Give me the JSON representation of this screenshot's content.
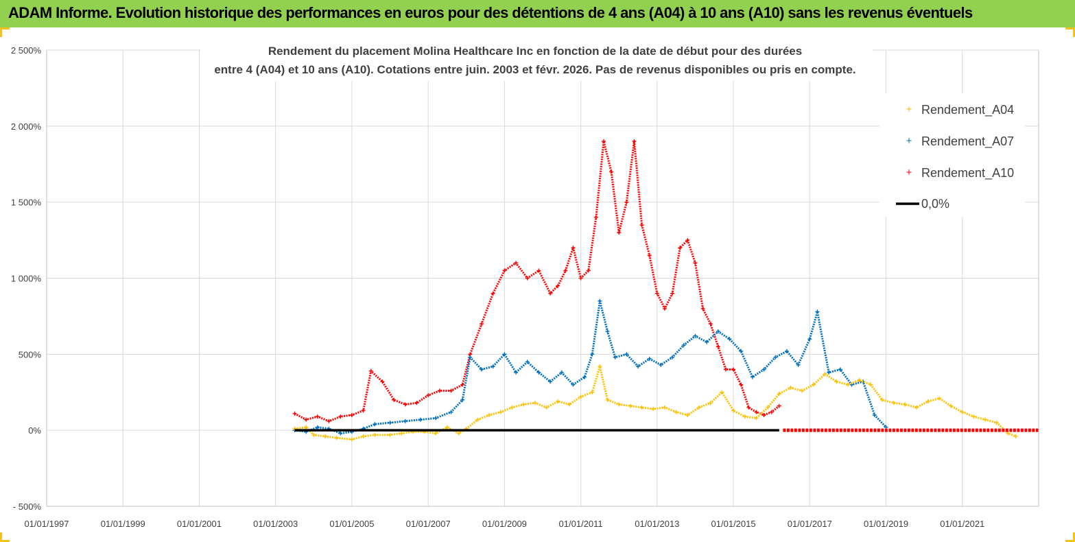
{
  "banner": {
    "title": "ADAM Informe. Evolution historique des performances en euros pour des détentions de 4 ans (A04) à 10 ans (A10) sans les revenus éventuels"
  },
  "colors": {
    "banner": "#92d050",
    "A04": "#ffc000",
    "A07": "#0070c0",
    "A10": "#ff0000",
    "zero": "#000000",
    "grid": "#d9d9d9"
  },
  "chart_data": {
    "type": "scatter",
    "title_line1": "Rendement du placement Molina Healthcare Inc en fonction de la date de début pour des durées",
    "title_line2": "entre 4 (A04) et 10 ans (A10). Cotations entre juin. 2003 et févr. 2026. Pas de revenus disponibles ou pris en compte.",
    "xlim": [
      1997.0,
      2023.0
    ],
    "ylim": [
      -500,
      2500
    ],
    "yticks": [
      {
        "v": 2500,
        "label": "2 500%"
      },
      {
        "v": 2000,
        "label": "2 000%"
      },
      {
        "v": 1500,
        "label": "1 500%"
      },
      {
        "v": 1000,
        "label": "1 000%"
      },
      {
        "v": 500,
        "label": "500%"
      },
      {
        "v": 0,
        "label": "0%"
      },
      {
        "v": -500,
        "label": "- 500%"
      }
    ],
    "xticks": [
      {
        "v": 1997,
        "label": "01/01/1997"
      },
      {
        "v": 1999,
        "label": "01/01/1999"
      },
      {
        "v": 2001,
        "label": "01/01/2001"
      },
      {
        "v": 2003,
        "label": "01/01/2003"
      },
      {
        "v": 2005,
        "label": "01/01/2005"
      },
      {
        "v": 2007,
        "label": "01/01/2007"
      },
      {
        "v": 2009,
        "label": "01/01/2009"
      },
      {
        "v": 2011,
        "label": "01/01/2011"
      },
      {
        "v": 2013,
        "label": "01/01/2013"
      },
      {
        "v": 2015,
        "label": "01/01/2015"
      },
      {
        "v": 2017,
        "label": "01/01/2017"
      },
      {
        "v": 2019,
        "label": "01/01/2019"
      },
      {
        "v": 2021,
        "label": "01/01/2021"
      }
    ],
    "series": [
      {
        "name": "Rendement_A04",
        "x": [
          2003.5,
          2003.8,
          2004.0,
          2004.3,
          2004.6,
          2005.0,
          2005.3,
          2005.6,
          2006.0,
          2006.3,
          2006.6,
          2006.9,
          2007.2,
          2007.5,
          2007.8,
          2008.0,
          2008.3,
          2008.6,
          2008.9,
          2009.2,
          2009.5,
          2009.8,
          2010.1,
          2010.4,
          2010.7,
          2011.0,
          2011.3,
          2011.5,
          2011.7,
          2012.0,
          2012.3,
          2012.6,
          2012.9,
          2013.2,
          2013.5,
          2013.8,
          2014.1,
          2014.4,
          2014.7,
          2015.0,
          2015.3,
          2015.6,
          2015.9,
          2016.2,
          2016.5,
          2016.8,
          2017.1,
          2017.4,
          2017.7,
          2018.0,
          2018.3,
          2018.6,
          2018.9,
          2019.2,
          2019.5,
          2019.8,
          2020.1,
          2020.4,
          2020.7,
          2021.0,
          2021.3,
          2021.6,
          2021.9,
          2022.2,
          2022.4
        ],
        "y": [
          10,
          20,
          -30,
          -40,
          -50,
          -60,
          -40,
          -30,
          -30,
          -20,
          -10,
          -10,
          -20,
          20,
          -20,
          10,
          70,
          100,
          120,
          150,
          170,
          180,
          150,
          190,
          170,
          220,
          250,
          420,
          200,
          170,
          160,
          150,
          140,
          150,
          120,
          100,
          150,
          180,
          250,
          130,
          90,
          80,
          150,
          240,
          280,
          260,
          300,
          370,
          320,
          300,
          330,
          300,
          200,
          180,
          170,
          150,
          190,
          210,
          160,
          120,
          90,
          70,
          50,
          -20,
          -40
        ]
      },
      {
        "name": "Rendement_A07",
        "x": [
          2003.5,
          2003.8,
          2004.1,
          2004.4,
          2004.7,
          2005.0,
          2005.3,
          2005.6,
          2006.0,
          2006.4,
          2006.8,
          2007.2,
          2007.6,
          2007.9,
          2008.1,
          2008.4,
          2008.7,
          2009.0,
          2009.3,
          2009.6,
          2009.9,
          2010.2,
          2010.5,
          2010.8,
          2011.1,
          2011.3,
          2011.5,
          2011.7,
          2011.9,
          2012.2,
          2012.5,
          2012.8,
          2013.1,
          2013.4,
          2013.7,
          2014.0,
          2014.3,
          2014.6,
          2014.9,
          2015.2,
          2015.5,
          2015.8,
          2016.1,
          2016.4,
          2016.7,
          2017.0,
          2017.2,
          2017.5,
          2017.8,
          2018.1,
          2018.4,
          2018.7,
          2019.0
        ],
        "y": [
          0,
          -10,
          20,
          10,
          -20,
          -10,
          10,
          40,
          50,
          60,
          70,
          80,
          120,
          200,
          480,
          400,
          420,
          500,
          380,
          450,
          380,
          320,
          380,
          300,
          350,
          500,
          850,
          650,
          480,
          500,
          420,
          470,
          430,
          480,
          560,
          620,
          580,
          650,
          600,
          520,
          350,
          400,
          480,
          520,
          430,
          600,
          780,
          380,
          400,
          300,
          320,
          100,
          20
        ]
      },
      {
        "name": "Rendement_A10",
        "x": [
          2003.5,
          2003.8,
          2004.1,
          2004.4,
          2004.7,
          2005.0,
          2005.3,
          2005.5,
          2005.8,
          2006.1,
          2006.4,
          2006.7,
          2007.0,
          2007.3,
          2007.6,
          2007.9,
          2008.1,
          2008.4,
          2008.7,
          2009.0,
          2009.3,
          2009.6,
          2009.9,
          2010.2,
          2010.4,
          2010.6,
          2010.8,
          2011.0,
          2011.2,
          2011.4,
          2011.6,
          2011.8,
          2012.0,
          2012.2,
          2012.4,
          2012.6,
          2012.8,
          2013.0,
          2013.2,
          2013.4,
          2013.6,
          2013.8,
          2014.0,
          2014.2,
          2014.4,
          2014.6,
          2014.8,
          2015.0,
          2015.2,
          2015.4,
          2015.6,
          2015.8,
          2016.0,
          2016.2
        ],
        "y": [
          110,
          70,
          90,
          60,
          90,
          100,
          130,
          390,
          320,
          200,
          170,
          180,
          230,
          260,
          260,
          300,
          500,
          700,
          900,
          1050,
          1100,
          1000,
          1050,
          900,
          950,
          1050,
          1200,
          1000,
          1050,
          1400,
          1900,
          1700,
          1300,
          1500,
          1900,
          1350,
          1150,
          900,
          800,
          900,
          1200,
          1250,
          1100,
          800,
          700,
          550,
          400,
          400,
          300,
          150,
          120,
          100,
          120,
          160
        ]
      },
      {
        "name": "0,0%",
        "x": [
          2003.5,
          2016.2
        ],
        "y": [
          0,
          0
        ]
      }
    ],
    "a10_zero_range": [
      2016.3,
      2023.0
    ],
    "legend": [
      "Rendement_A04",
      "Rendement_A07",
      "Rendement_A10",
      "0,0%"
    ],
    "legend_position": "top-right"
  }
}
